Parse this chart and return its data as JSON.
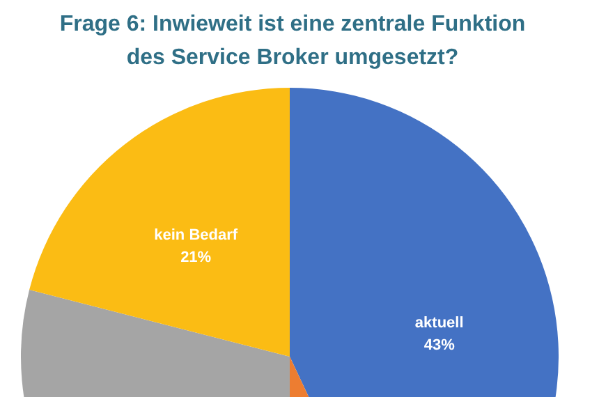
{
  "chart_data": {
    "type": "pie",
    "title": "Frage 6: Inwieweit ist eine zentrale Funktion des Service Broker umgesetzt?",
    "categories": [
      "aktuell",
      null,
      null,
      "kein Bedarf"
    ],
    "values": [
      43,
      7,
      29,
      21
    ],
    "colors": [
      "#4472c4",
      "#ed7d31",
      "#a5a5a5",
      "#fbbc14"
    ],
    "value_labels": [
      "43%",
      null,
      null,
      "21%"
    ]
  }
}
